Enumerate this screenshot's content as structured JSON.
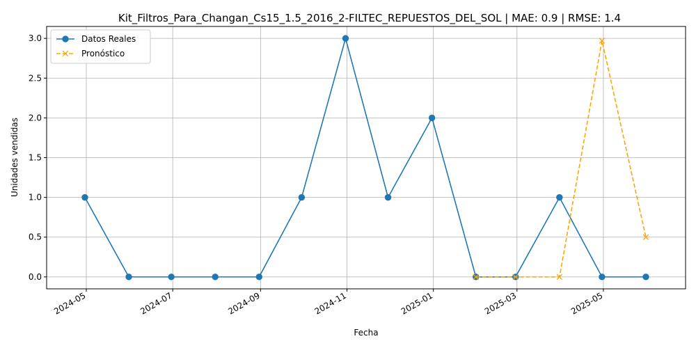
{
  "chart_data": {
    "type": "line",
    "title": "Kit_Filtros_Para_Changan_Cs15_1.5_2016_2-FILTEC_REPUESTOS_DEL_SOL | MAE: 0.9 | RMSE: 1.4",
    "xlabel": "Fecha",
    "ylabel": "Unidades vendidas",
    "grid": true,
    "legend_position": "upper-left",
    "xlim": [
      "2024-04-03",
      "2025-06-28"
    ],
    "ylim": [
      -0.15,
      3.15
    ],
    "x_ticks": [
      "2024-05",
      "2024-07",
      "2024-09",
      "2024-11",
      "2025-01",
      "2025-03",
      "2025-05"
    ],
    "x_tick_dates": [
      "2024-05-01",
      "2024-07-01",
      "2024-09-01",
      "2024-11-01",
      "2025-01-01",
      "2025-03-01",
      "2025-05-01"
    ],
    "y_ticks": [
      "0.0",
      "0.5",
      "1.0",
      "1.5",
      "2.0",
      "2.5",
      "3.0"
    ],
    "y_tick_values": [
      0,
      0.5,
      1,
      1.5,
      2,
      2.5,
      3
    ],
    "series": [
      {
        "name": "Datos Reales",
        "color": "#1f77b4",
        "line_style": "solid",
        "marker": "circle",
        "x": [
          "2024-04-30",
          "2024-05-31",
          "2024-06-30",
          "2024-07-31",
          "2024-08-31",
          "2024-09-30",
          "2024-10-31",
          "2024-11-30",
          "2024-12-31",
          "2025-01-31",
          "2025-02-28",
          "2025-03-31",
          "2025-04-30",
          "2025-05-31"
        ],
        "values": [
          1,
          0,
          0,
          0,
          0,
          1,
          3,
          1,
          2,
          0,
          0,
          1,
          0,
          0
        ]
      },
      {
        "name": "Pronóstico",
        "color": "#ffa500",
        "line_style": "dashed",
        "marker": "x",
        "x": [
          "2025-01-31",
          "2025-02-28",
          "2025-03-31",
          "2025-04-30",
          "2025-05-31"
        ],
        "values": [
          0,
          0,
          0,
          2.97,
          0.5
        ]
      }
    ]
  }
}
